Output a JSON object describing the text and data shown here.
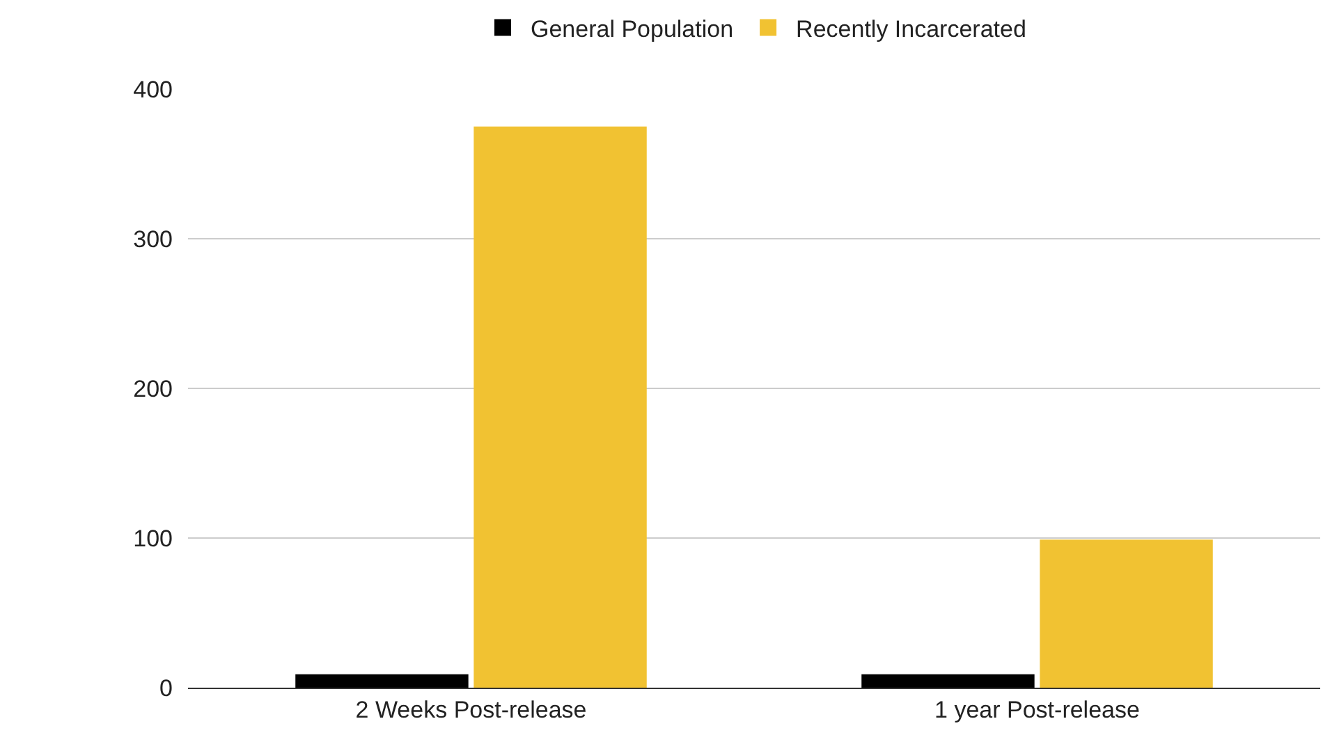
{
  "chart_data": {
    "type": "bar",
    "categories": [
      "2 Weeks Post-release",
      "1 year Post-release"
    ],
    "series": [
      {
        "name": "General Population",
        "color": "#000000",
        "values": [
          9,
          9
        ]
      },
      {
        "name": "Recently Incarcerated",
        "color": "#f1c232",
        "values": [
          375,
          99
        ]
      }
    ],
    "ylim": [
      0,
      400
    ],
    "yticks": [
      0,
      100,
      200,
      300,
      400
    ],
    "grid": "y",
    "legend": "top"
  }
}
